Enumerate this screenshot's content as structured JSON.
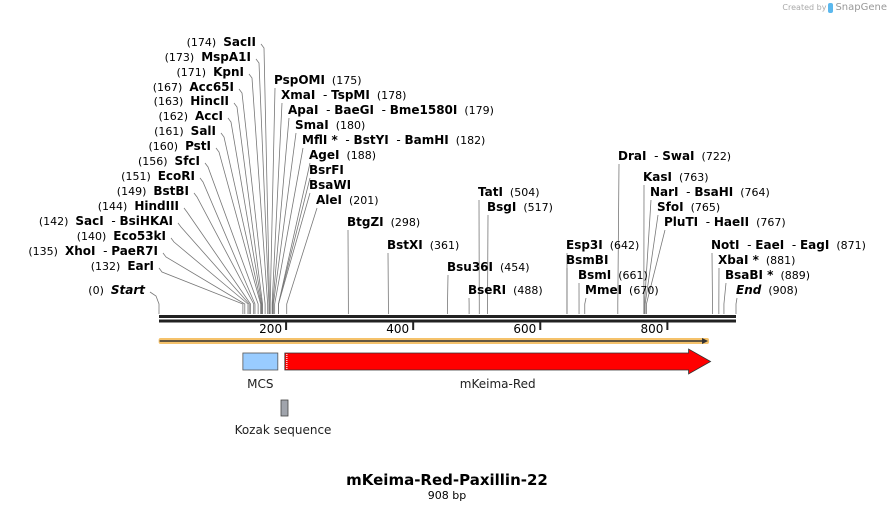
{
  "credit": {
    "prefix": "Created by",
    "brand": "SnapGene"
  },
  "map": {
    "title": "mKeima-Red-Paxillin-22",
    "length_label": "908 bp",
    "length_bp": 908,
    "ticks": [
      200,
      400,
      600,
      800
    ],
    "colors": {
      "backbone": "#222222",
      "orf": "#f5c26b",
      "mcs": "#99ccff",
      "mkeima": "#ff0000",
      "kozak": "#a0a4ac",
      "line": "#777777"
    }
  },
  "sites": [
    {
      "names": [
        "Start"
      ],
      "pos": 0,
      "italic": true
    },
    {
      "names": [
        "EarI"
      ],
      "pos": 132
    },
    {
      "names": [
        "XhoI",
        "PaeR7I"
      ],
      "pos": 135
    },
    {
      "names": [
        "Eco53kI"
      ],
      "pos": 140
    },
    {
      "names": [
        "SacI",
        "BsiHKAI"
      ],
      "pos": 142
    },
    {
      "names": [
        "HindIII"
      ],
      "pos": 144
    },
    {
      "names": [
        "BstBI"
      ],
      "pos": 149
    },
    {
      "names": [
        "EcoRI"
      ],
      "pos": 151
    },
    {
      "names": [
        "SfcI"
      ],
      "pos": 156
    },
    {
      "names": [
        "PstI"
      ],
      "pos": 160
    },
    {
      "names": [
        "SalI"
      ],
      "pos": 161
    },
    {
      "names": [
        "AccI"
      ],
      "pos": 162
    },
    {
      "names": [
        "HincII"
      ],
      "pos": 163
    },
    {
      "names": [
        "Acc65I"
      ],
      "pos": 167
    },
    {
      "names": [
        "KpnI"
      ],
      "pos": 171
    },
    {
      "names": [
        "MspA1I"
      ],
      "pos": 173
    },
    {
      "names": [
        "SacII"
      ],
      "pos": 174
    },
    {
      "names": [
        "PspOMI"
      ],
      "pos": 175
    },
    {
      "names": [
        "XmaI",
        "TspMI"
      ],
      "pos": 178
    },
    {
      "names": [
        "ApaI",
        "BaeGI",
        "Bme1580I"
      ],
      "pos": 179
    },
    {
      "names": [
        "SmaI"
      ],
      "pos": 180
    },
    {
      "names": [
        "MflI *",
        "BstYI",
        "BamHI"
      ],
      "pos": 182
    },
    {
      "names": [
        "AgeI"
      ],
      "pos": 188
    },
    {
      "names": [
        "BsrFI"
      ],
      "pos": 188,
      "hide_pos": true
    },
    {
      "names": [
        "BsaWI"
      ],
      "pos": 188,
      "hide_pos": true
    },
    {
      "names": [
        "AleI"
      ],
      "pos": 201
    },
    {
      "names": [
        "BtgZI"
      ],
      "pos": 298
    },
    {
      "names": [
        "BstXI"
      ],
      "pos": 361
    },
    {
      "names": [
        "Bsu36I"
      ],
      "pos": 454
    },
    {
      "names": [
        "BseRI"
      ],
      "pos": 488
    },
    {
      "names": [
        "TatI"
      ],
      "pos": 504
    },
    {
      "names": [
        "BsgI"
      ],
      "pos": 517
    },
    {
      "names": [
        "Esp3I"
      ],
      "pos": 642
    },
    {
      "names": [
        "BsmBI"
      ],
      "pos": 642,
      "hide_pos": true
    },
    {
      "names": [
        "BsmI"
      ],
      "pos": 661
    },
    {
      "names": [
        "MmeI"
      ],
      "pos": 670
    },
    {
      "names": [
        "DraI",
        "SwaI"
      ],
      "pos": 722
    },
    {
      "names": [
        "KasI"
      ],
      "pos": 763
    },
    {
      "names": [
        "NarI",
        "BsaHI"
      ],
      "pos": 764
    },
    {
      "names": [
        "SfoI"
      ],
      "pos": 765
    },
    {
      "names": [
        "PluTI",
        "HaeII"
      ],
      "pos": 767
    },
    {
      "names": [
        "NotI",
        "EaeI",
        "EagI"
      ],
      "pos": 871
    },
    {
      "names": [
        "XbaI *"
      ],
      "pos": 881
    },
    {
      "names": [
        "BsaBI *"
      ],
      "pos": 889
    },
    {
      "names": [
        "End"
      ],
      "pos": 908,
      "italic": true
    }
  ],
  "features": [
    {
      "name": "ORF",
      "type": "orf",
      "start": 1,
      "end": 864,
      "show_label": false
    },
    {
      "name": "MCS",
      "type": "mcs",
      "start": 132,
      "end": 187
    },
    {
      "name": "mKeima-Red",
      "type": "mkeima",
      "start": 198,
      "end": 868
    },
    {
      "name": "Kozak sequence",
      "type": "kozak",
      "start": 192,
      "end": 197
    }
  ]
}
